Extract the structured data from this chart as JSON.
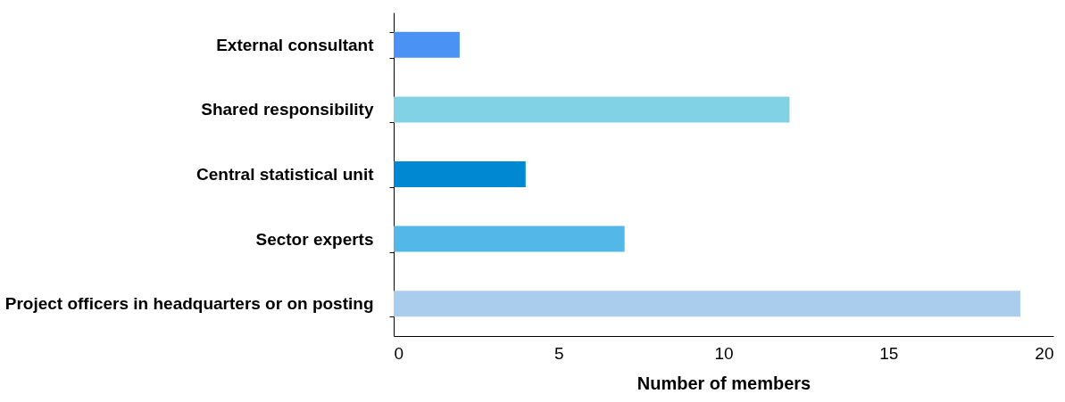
{
  "chart_data": {
    "type": "bar",
    "orientation": "horizontal",
    "xlabel": "Number of members",
    "categories": [
      "External consultant",
      "Shared responsibility",
      "Central statistical unit",
      "Sector experts",
      "Project officers in headquarters or on posting"
    ],
    "values": [
      2,
      12,
      4,
      7,
      19
    ],
    "colors": [
      "#4a92f3",
      "#82d2e6",
      "#0089d2",
      "#53b8e8",
      "#aacdee"
    ],
    "xlim": [
      0,
      20
    ],
    "xticks": [
      0,
      5,
      10,
      15,
      20
    ],
    "grid": false
  }
}
